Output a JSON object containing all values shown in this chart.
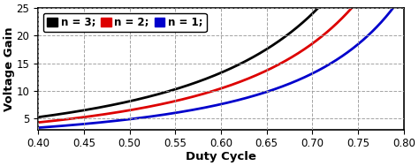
{
  "title": "",
  "xlabel": "Duty Cycle",
  "ylabel": "Voltage Gain",
  "xlim": [
    0.4,
    0.8
  ],
  "ylim": [
    3,
    25
  ],
  "xticks": [
    0.4,
    0.45,
    0.5,
    0.55,
    0.6,
    0.65,
    0.7,
    0.75,
    0.8
  ],
  "yticks": [
    5,
    10,
    15,
    20,
    25
  ],
  "ytick_labels": [
    "5",
    "10",
    "15",
    "20",
    "25"
  ],
  "series": [
    {
      "n": 3,
      "color": "#000000",
      "label": "n = 3;"
    },
    {
      "n": 2,
      "color": "#dd0000",
      "label": "n = 2;"
    },
    {
      "n": 1,
      "color": "#0000cc",
      "label": "n = 1;"
    }
  ],
  "legend_fontsize": 8.5,
  "axis_fontsize": 9.5,
  "tick_fontsize": 8.5,
  "linewidth": 2.0,
  "background_color": "#ffffff",
  "grid_color": "#999999",
  "legend_loc": "upper left"
}
